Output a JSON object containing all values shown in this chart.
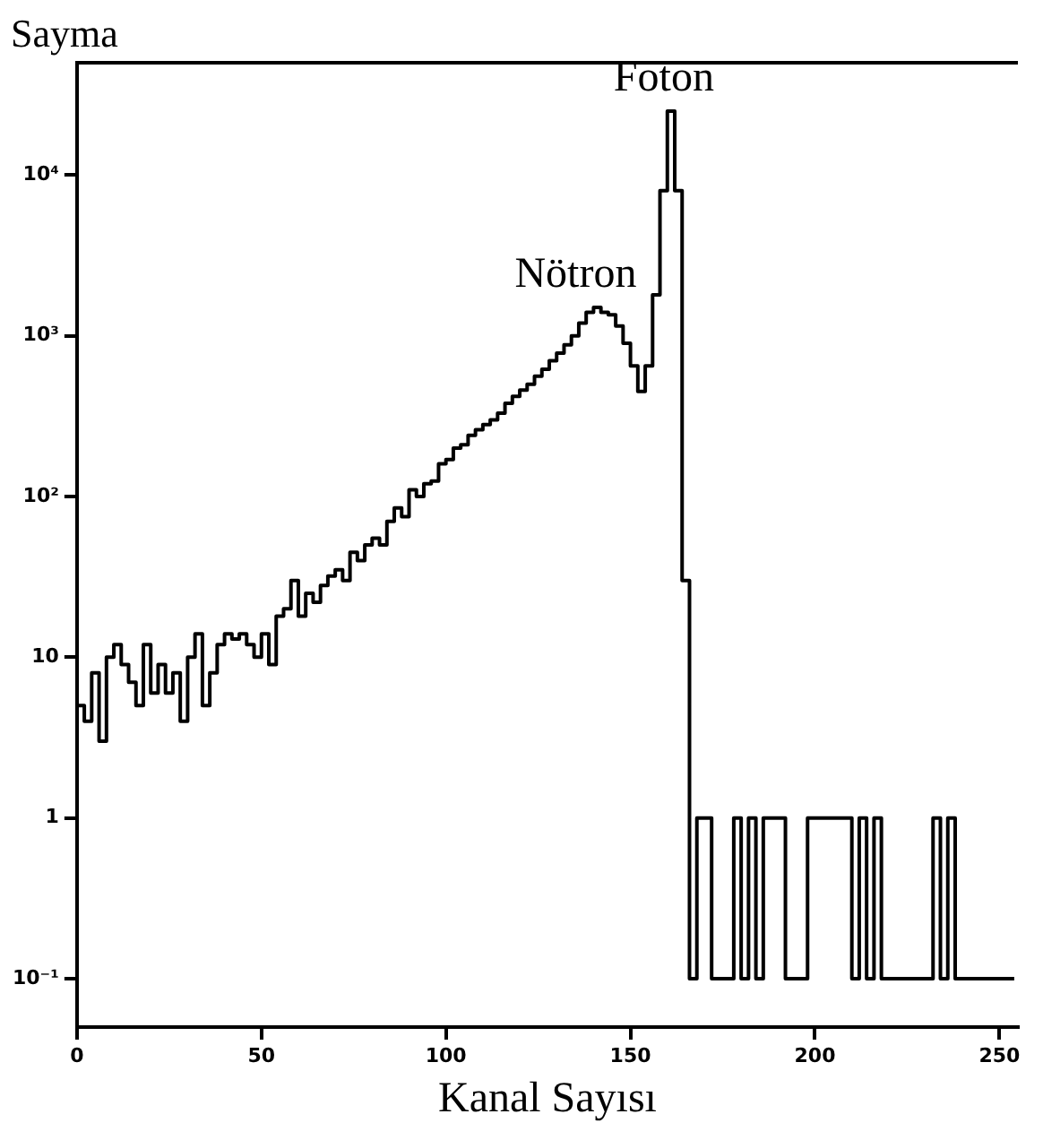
{
  "chart_data": {
    "type": "histogram",
    "xlabel": "Kanal Sayısı",
    "ylabel": "Sayma",
    "bins": [
      0,
      2,
      4,
      6,
      8,
      10,
      12,
      14,
      16,
      18,
      20,
      22,
      24,
      26,
      28,
      30,
      32,
      34,
      36,
      38,
      40,
      42,
      44,
      46,
      48,
      50,
      52,
      54,
      56,
      58,
      60,
      62,
      64,
      66,
      68,
      70,
      72,
      74,
      76,
      78,
      80,
      82,
      84,
      86,
      88,
      90,
      92,
      94,
      96,
      98,
      100,
      102,
      104,
      106,
      108,
      110,
      112,
      114,
      116,
      118,
      120,
      122,
      124,
      126,
      128,
      130,
      132,
      134,
      136,
      138,
      140,
      142,
      144,
      146,
      148,
      150,
      152,
      154,
      156,
      158,
      160,
      162,
      164,
      166,
      168,
      170,
      172,
      174,
      176,
      178,
      180,
      182,
      184,
      186,
      188,
      190,
      192,
      194,
      196,
      198,
      200,
      202,
      204,
      206,
      208,
      210,
      212,
      214,
      216,
      218,
      220,
      222,
      224,
      226,
      228,
      230,
      232,
      234,
      236,
      238,
      240,
      242,
      244,
      246,
      248,
      250,
      252,
      254
    ],
    "values": [
      5,
      4,
      8,
      3,
      10,
      12,
      9,
      7,
      5,
      12,
      6,
      9,
      6,
      8,
      4,
      10,
      14,
      5,
      8,
      12,
      14,
      13,
      14,
      12,
      10,
      14,
      9,
      18,
      20,
      30,
      18,
      25,
      22,
      28,
      32,
      35,
      30,
      45,
      40,
      50,
      55,
      50,
      70,
      85,
      75,
      110,
      100,
      120,
      125,
      160,
      170,
      200,
      210,
      240,
      260,
      280,
      300,
      330,
      380,
      420,
      460,
      500,
      560,
      620,
      700,
      780,
      880,
      1000,
      1200,
      1400,
      1500,
      1400,
      1350,
      1150,
      900,
      650,
      450,
      650,
      1800,
      8000,
      25000,
      8000,
      30,
      0.1,
      1,
      1,
      0.1,
      0.1,
      0.1,
      1,
      0.1,
      1,
      0.1,
      1,
      1,
      1,
      0.1,
      0.1,
      0.1,
      1,
      1,
      1,
      1,
      1,
      1,
      0.1,
      1,
      0.1,
      1,
      0.1,
      0.1,
      0.1,
      0.1,
      0.1,
      0.1,
      0.1,
      1,
      0.1,
      1,
      0.1,
      0.1,
      0.1,
      0.1,
      0.1,
      0.1,
      0.1,
      0.1
    ],
    "color": "#000000",
    "log": "y",
    "grid": false,
    "legend": false,
    "xlim": [
      0,
      255
    ],
    "xticks": [
      0,
      50,
      100,
      150,
      200,
      250
    ],
    "ylim": [
      0.05,
      50000
    ],
    "yticks": [
      {
        "value": 0.1,
        "label": "10⁻¹"
      },
      1,
      10,
      {
        "value": 100,
        "label": "10²"
      },
      {
        "value": 1000,
        "label": "10³"
      },
      {
        "value": 10000,
        "label": "10⁴"
      }
    ],
    "annotations": [
      {
        "text": "Foton",
        "x": 161,
        "y": 25000
      },
      {
        "text": "Nötron",
        "x": 140,
        "y": 1500
      }
    ]
  }
}
